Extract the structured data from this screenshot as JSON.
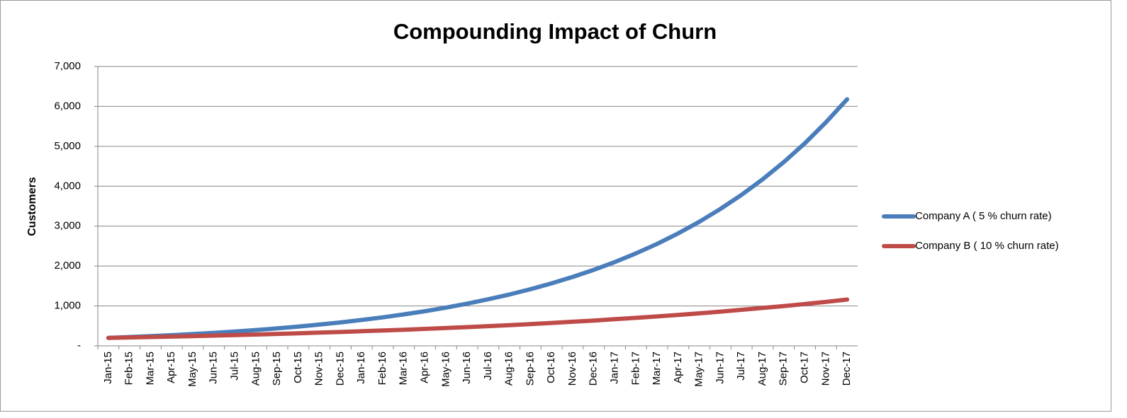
{
  "chart_data": {
    "type": "line",
    "title": "Compounding Impact of Churn",
    "y_label": "Customers",
    "categories": [
      "Jan-15",
      "Feb-15",
      "Mar-15",
      "Apr-15",
      "May-15",
      "Jun-15",
      "Jul-15",
      "Aug-15",
      "Sep-15",
      "Oct-15",
      "Nov-15",
      "Dec-15",
      "Jan-16",
      "Feb-16",
      "Mar-16",
      "Apr-16",
      "May-16",
      "Jun-16",
      "Jul-16",
      "Aug-16",
      "Sep-16",
      "Oct-16",
      "Nov-16",
      "Dec-16",
      "Jan-17",
      "Feb-17",
      "Mar-17",
      "Apr-17",
      "May-17",
      "Jun-17",
      "Jul-17",
      "Aug-17",
      "Sep-17",
      "Oct-17",
      "Nov-17",
      "Dec-17"
    ],
    "series": [
      {
        "name": "Company A ( 5 % churn rate)",
        "color": "#4a7ebb",
        "values": [
          200,
          221,
          243,
          268,
          296,
          326,
          360,
          397,
          438,
          483,
          533,
          587,
          648,
          715,
          788,
          869,
          959,
          1058,
          1167,
          1287,
          1419,
          1566,
          1727,
          1905,
          2101,
          2318,
          2556,
          2820,
          3110,
          3431,
          3784,
          4174,
          4604,
          5078,
          5601,
          6178
        ]
      },
      {
        "name": "Company B ( 10 % churn rate)",
        "color": "#be4b48",
        "values": [
          200,
          210,
          221,
          233,
          245,
          257,
          270,
          284,
          299,
          314,
          331,
          348,
          366,
          385,
          404,
          425,
          447,
          470,
          494,
          520,
          546,
          575,
          604,
          635,
          668,
          702,
          738,
          776,
          816,
          858,
          903,
          949,
          998,
          1049,
          1103,
          1160
        ]
      }
    ],
    "ylim": [
      0,
      7000
    ],
    "yticks": [
      {
        "value": 0,
        "label": "-"
      },
      {
        "value": 1000,
        "label": "1,000"
      },
      {
        "value": 2000,
        "label": "2,000"
      },
      {
        "value": 3000,
        "label": "3,000"
      },
      {
        "value": 4000,
        "label": "4,000"
      },
      {
        "value": 5000,
        "label": "5,000"
      },
      {
        "value": 6000,
        "label": "6,000"
      },
      {
        "value": 7000,
        "label": "7,000"
      }
    ],
    "grid": true,
    "legend": "right"
  }
}
